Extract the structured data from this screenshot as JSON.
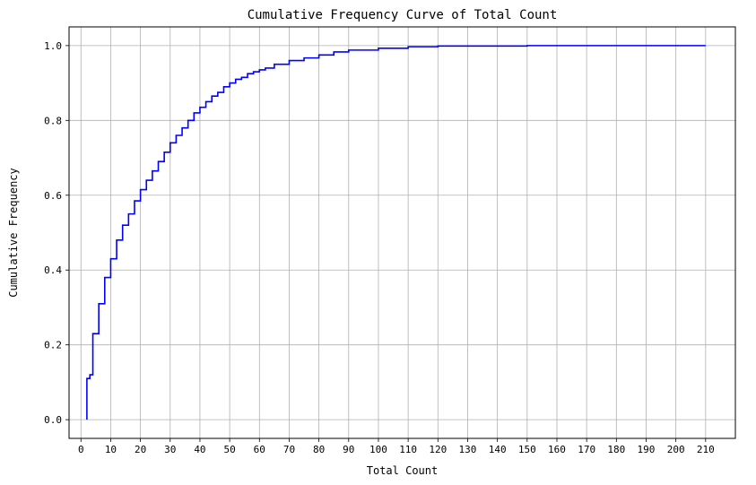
{
  "chart_data": {
    "type": "line",
    "step": true,
    "title": "Cumulative Frequency Curve of Total Count",
    "xlabel": "Total Count",
    "ylabel": "Cumulative Frequency",
    "xlim": [
      -4,
      220
    ],
    "ylim": [
      -0.05,
      1.05
    ],
    "xticks": [
      0,
      10,
      20,
      30,
      40,
      50,
      60,
      70,
      80,
      90,
      100,
      110,
      120,
      130,
      140,
      150,
      160,
      170,
      180,
      190,
      200,
      210
    ],
    "yticks": [
      0.0,
      0.2,
      0.4,
      0.6,
      0.8,
      1.0
    ],
    "grid": true,
    "series": [
      {
        "color": "#0000ff",
        "x": [
          2,
          3,
          4,
          6,
          8,
          10,
          12,
          14,
          16,
          18,
          20,
          22,
          24,
          26,
          28,
          30,
          32,
          34,
          36,
          38,
          40,
          42,
          44,
          46,
          48,
          50,
          52,
          54,
          56,
          58,
          60,
          62,
          65,
          70,
          75,
          80,
          85,
          90,
          100,
          110,
          120,
          150,
          180,
          210
        ],
        "y": [
          0.11,
          0.12,
          0.23,
          0.31,
          0.38,
          0.43,
          0.48,
          0.52,
          0.55,
          0.585,
          0.615,
          0.64,
          0.665,
          0.69,
          0.715,
          0.74,
          0.76,
          0.78,
          0.8,
          0.82,
          0.835,
          0.85,
          0.865,
          0.875,
          0.89,
          0.9,
          0.91,
          0.915,
          0.925,
          0.93,
          0.935,
          0.94,
          0.95,
          0.96,
          0.967,
          0.975,
          0.983,
          0.988,
          0.993,
          0.997,
          0.999,
          1.0,
          1.0,
          1.0
        ]
      }
    ]
  }
}
